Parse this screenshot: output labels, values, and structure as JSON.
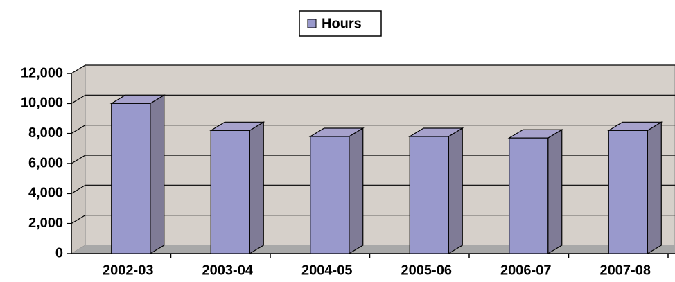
{
  "chart_data": {
    "type": "bar3d",
    "categories": [
      "2002-03",
      "2003-04",
      "2004-05",
      "2005-06",
      "2006-07",
      "2007-08"
    ],
    "series": [
      {
        "name": "Hours",
        "color": "#9999cc",
        "values": [
          10000,
          8200,
          7800,
          7800,
          7700,
          8200
        ]
      }
    ],
    "ylim": [
      0,
      12000
    ],
    "yticks": [
      0,
      {
        "value": 2000,
        "label": "2,000"
      },
      {
        "value": 4000,
        "label": "4,000"
      },
      {
        "value": 6000,
        "label": "6,000"
      },
      {
        "value": 8000,
        "label": "8,000"
      },
      {
        "value": 10000,
        "label": "10,000"
      },
      {
        "value": 12000,
        "label": "12,000"
      }
    ],
    "grid": true,
    "legend": "top"
  }
}
